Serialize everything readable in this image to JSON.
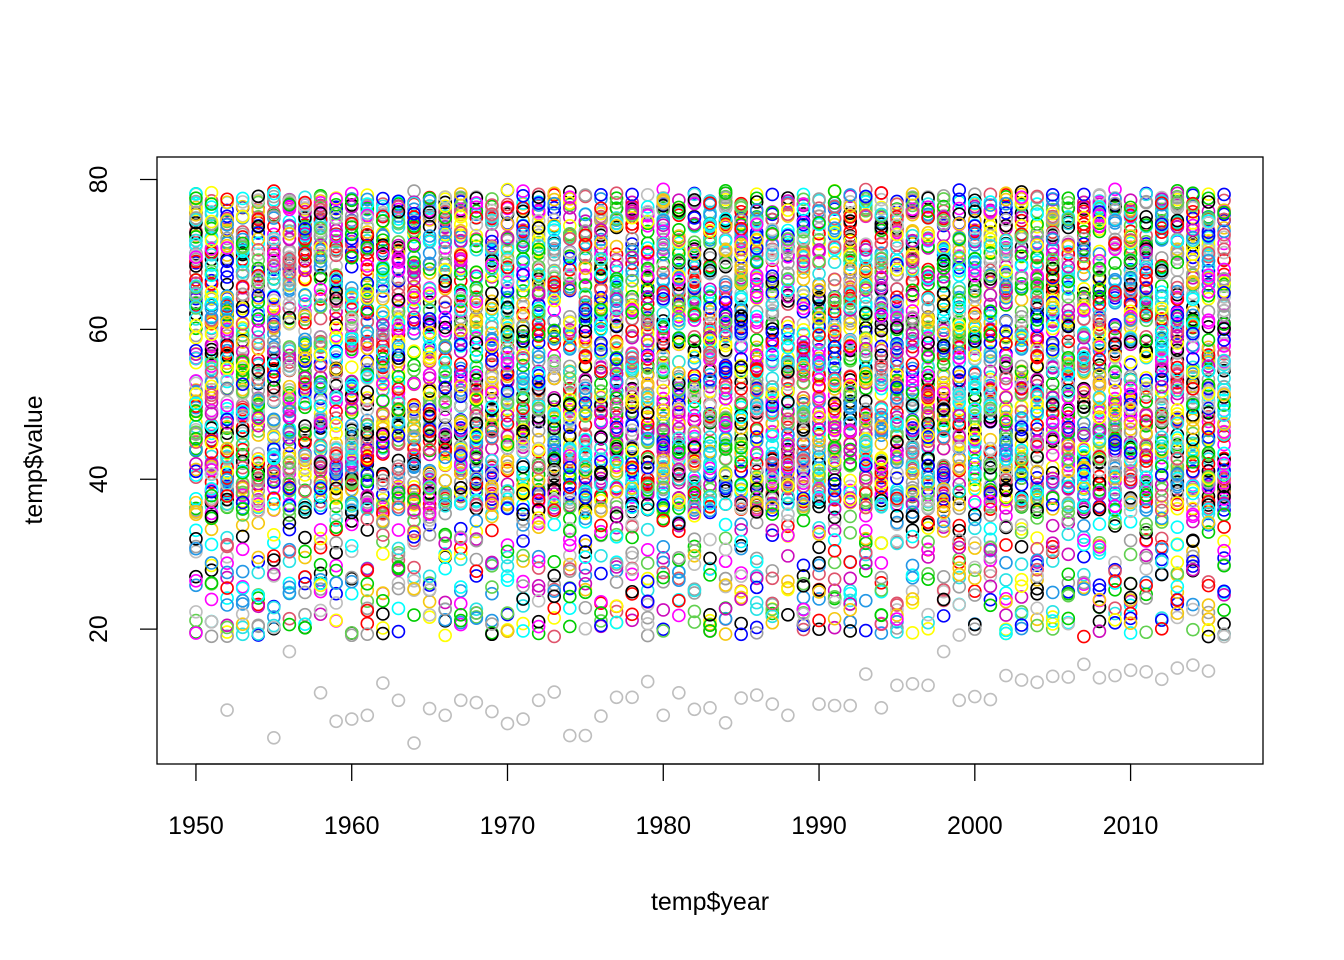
{
  "chart_data": {
    "type": "scatter",
    "title": "",
    "xlabel": "temp$year",
    "ylabel": "temp$value",
    "xlim": [
      1947.5,
      2018.5
    ],
    "ylim": [
      2.0,
      83.0
    ],
    "x_ticks": [
      1950,
      1960,
      1970,
      1980,
      1990,
      2000,
      2010
    ],
    "x_tick_labels": [
      "1950",
      "1960",
      "1970",
      "1980",
      "1990",
      "2000",
      "2010"
    ],
    "y_ticks": [
      20,
      40,
      60,
      80
    ],
    "y_tick_labels": [
      "20",
      "40",
      "60",
      "80"
    ],
    "marker": "open-circle",
    "grid": false,
    "legend": "none",
    "palette": [
      "#000000",
      "#DF536B",
      "#61D04F",
      "#2297E6",
      "#28E2E5",
      "#CD0BBC",
      "#F5C710",
      "#9E9E9E",
      "#0000FF",
      "#FF0000",
      "#00CD00",
      "#00FFFF",
      "#FF00FF",
      "#FFFF00",
      "#BEBEBE"
    ],
    "series_summary": {
      "years": [
        1950,
        2016
      ],
      "bulk_range": [
        36,
        78
      ],
      "low_outlier_series": {
        "color": "#BEBEBE",
        "x": [
          1950,
          1951,
          1952,
          1953,
          1955,
          1956,
          1958,
          1959,
          1960,
          1961,
          1962,
          1963,
          1964,
          1965,
          1966,
          1967,
          1968,
          1969,
          1970,
          1971,
          1972,
          1973,
          1974,
          1975,
          1976,
          1977,
          1978,
          1979,
          1980,
          1981,
          1982,
          1983,
          1984,
          1985,
          1986,
          1987,
          1988,
          1989,
          1990,
          1991,
          1992,
          1993,
          1994,
          1995,
          1996,
          1997,
          1998,
          1999,
          2000,
          2001,
          2002,
          2003,
          2004,
          2005,
          2006,
          2007,
          2008,
          2009,
          2010,
          2011,
          2012,
          2013,
          2014,
          2015,
          2016
        ],
        "y": [
          22.3,
          21.0,
          9.2,
          22.0,
          5.5,
          17.0,
          11.5,
          7.7,
          8.0,
          8.5,
          12.8,
          10.5,
          4.8,
          9.4,
          8.5,
          10.5,
          10.2,
          9.0,
          7.4,
          8.0,
          10.5,
          11.6,
          5.8,
          5.8,
          8.4,
          10.9,
          10.9,
          13.0,
          8.5,
          11.5,
          9.3,
          9.5,
          7.5,
          10.8,
          11.2,
          10.0,
          8.5,
          22.0,
          10.0,
          9.8,
          9.8,
          14.0,
          9.5,
          12.5,
          12.7,
          12.5,
          17.0,
          10.5,
          11.0,
          10.6,
          13.8,
          13.2,
          12.9,
          13.7,
          13.6,
          15.3,
          13.5,
          13.8,
          14.5,
          14.3,
          13.3,
          14.8,
          15.2,
          14.4,
          19.0
        ]
      }
    }
  }
}
